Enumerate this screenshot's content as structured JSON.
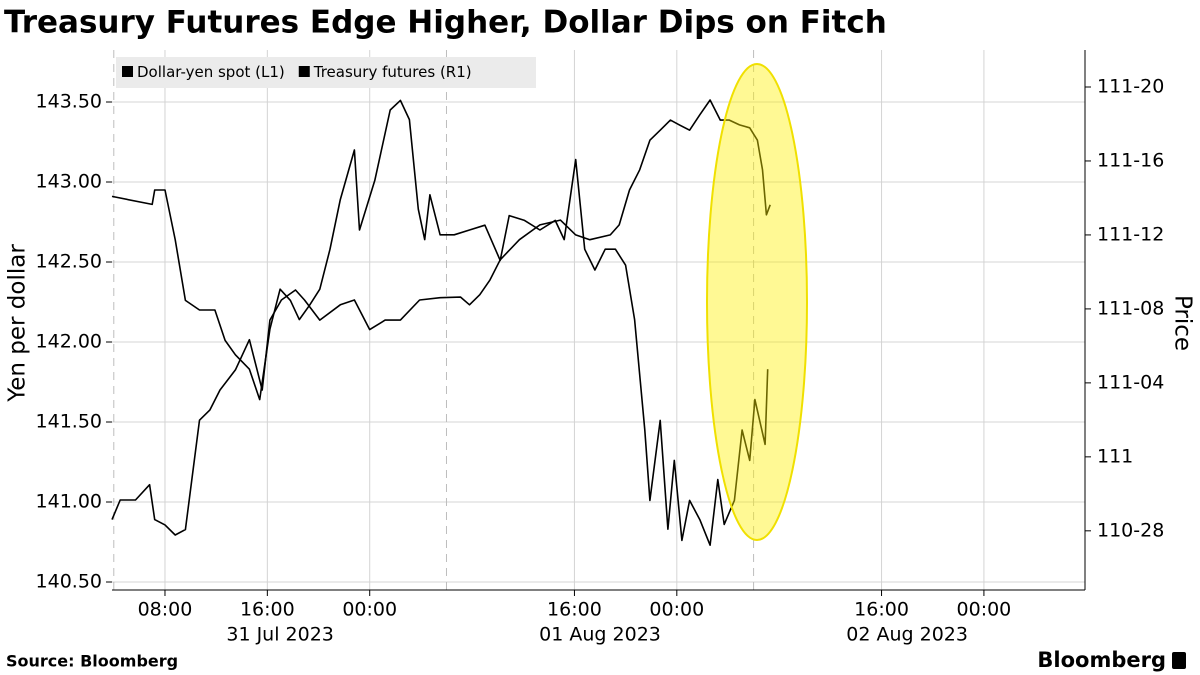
{
  "chart_data": {
    "type": "line",
    "title": "Treasury Futures Edge Higher, Dollar Dips on Fitch",
    "y_label": "Yen per dollar",
    "y2_label": "Price",
    "source": "Source: Bloomberg",
    "logo": "Bloomberg",
    "xlim": [
      3.86,
      79.9
    ],
    "xticks": [
      {
        "value": 8,
        "label": "08:00"
      },
      {
        "value": 16,
        "label": "16:00"
      },
      {
        "value": 24,
        "label": "00:00"
      },
      {
        "value": 40,
        "label": "16:00"
      },
      {
        "value": 48,
        "label": "00:00"
      },
      {
        "value": 64,
        "label": "16:00"
      },
      {
        "value": 72,
        "label": "00:00"
      }
    ],
    "date_ticks": [
      {
        "value": 17,
        "label": "31 Jul 2023"
      },
      {
        "value": 42,
        "label": "01 Aug 2023"
      },
      {
        "value": 66,
        "label": "02 Aug 2023"
      }
    ],
    "dashed_vlines": [
      4,
      30,
      54
    ],
    "ylim": [
      140.45,
      143.825
    ],
    "yticks": [
      {
        "value": 140.5,
        "label": "140.50"
      },
      {
        "value": 141,
        "label": "141.00"
      },
      {
        "value": 141.5,
        "label": "141.50"
      },
      {
        "value": 142,
        "label": "142.00"
      },
      {
        "value": 142.5,
        "label": "142.50"
      },
      {
        "value": 143,
        "label": "143.00"
      },
      {
        "value": 143.5,
        "label": "143.50"
      }
    ],
    "y2lim": [
      110.775,
      111.6875
    ],
    "y2ticks": [
      {
        "value": 110.875,
        "label": "110-28"
      },
      {
        "value": 111,
        "label": "111"
      },
      {
        "value": 111.125,
        "label": "111-04"
      },
      {
        "value": 111.25,
        "label": "111-08"
      },
      {
        "value": 111.375,
        "label": "111-12"
      },
      {
        "value": 111.5,
        "label": "111-16"
      },
      {
        "value": 111.625,
        "label": "111-20"
      }
    ],
    "grid": true,
    "series": [
      {
        "name": "Dollar-yen spot (L1)",
        "color": "#000000",
        "axis": "y",
        "x": [
          3.86,
          7,
          7.2,
          8,
          8.8,
          9.6,
          10.7,
          11.9,
          12.7,
          13.5,
          14.6,
          15.4,
          16.2,
          17,
          17.8,
          18.5,
          19.3,
          20.1,
          20.9,
          21.7,
          22.8,
          23.2,
          24.4,
          25.6,
          26.4,
          27.1,
          27.8,
          28.3,
          28.7,
          29.5,
          30.6,
          31.8,
          33,
          34.2,
          34.9,
          36.1,
          37.3,
          38.5,
          39.2,
          40.1,
          40.8,
          41.6,
          42.4,
          43.2,
          44,
          44.7,
          45.5,
          45.9,
          46.7,
          47.3,
          47.8,
          48.4,
          49,
          49.8,
          50.6,
          51.2,
          51.7,
          52.5,
          53.1,
          53.7,
          54.1,
          54.9,
          55.1
        ],
        "values": [
          142.91,
          142.86,
          142.95,
          142.95,
          142.64,
          142.26,
          142.2,
          142.2,
          142.01,
          141.92,
          141.83,
          141.64,
          142.08,
          142.33,
          142.26,
          142.14,
          142.23,
          142.33,
          142.58,
          142.89,
          143.2,
          142.7,
          143.01,
          143.45,
          143.51,
          143.39,
          142.83,
          142.64,
          142.92,
          142.67,
          142.67,
          142.7,
          142.73,
          142.51,
          142.79,
          142.76,
          142.7,
          142.76,
          142.64,
          143.14,
          142.58,
          142.45,
          142.58,
          142.58,
          142.48,
          142.14,
          141.45,
          141.01,
          141.51,
          140.83,
          141.26,
          140.76,
          141.01,
          140.89,
          140.73,
          141.14,
          140.86,
          141.01,
          141.45,
          141.26,
          141.64,
          141.36,
          141.83
        ]
      },
      {
        "name": "Treasury futures (R1)",
        "color": "#000000",
        "axis": "y2",
        "x": [
          3.86,
          4.5,
          5.7,
          6.8,
          7.2,
          8,
          8.8,
          9.6,
          10.1,
          10.7,
          11.5,
          12.3,
          13.5,
          14.6,
          15.6,
          16.2,
          17.1,
          18.2,
          18.9,
          20.1,
          21.7,
          22.8,
          24,
          25.2,
          26.4,
          27.9,
          29.5,
          31.1,
          31.8,
          32.6,
          33.4,
          34.2,
          35.7,
          37.3,
          38.9,
          40.1,
          41.2,
          42.8,
          43.5,
          44.3,
          45.1,
          45.9,
          46.7,
          47.5,
          48.2,
          49,
          49.8,
          50.6,
          51.4,
          52.1,
          52.9,
          53.7,
          54.3,
          54.7,
          55,
          55.3
        ],
        "values": [
          110.894,
          110.927,
          110.927,
          110.953,
          110.894,
          110.885,
          110.868,
          110.877,
          110.961,
          111.062,
          111.079,
          111.113,
          111.147,
          111.198,
          111.113,
          111.231,
          111.265,
          111.282,
          111.265,
          111.231,
          111.257,
          111.265,
          111.215,
          111.231,
          111.231,
          111.265,
          111.269,
          111.27,
          111.257,
          111.274,
          111.299,
          111.333,
          111.367,
          111.392,
          111.4,
          111.375,
          111.367,
          111.375,
          111.392,
          111.451,
          111.485,
          111.535,
          111.552,
          111.569,
          111.561,
          111.552,
          111.578,
          111.603,
          111.569,
          111.569,
          111.561,
          111.556,
          111.535,
          111.485,
          111.409,
          111.426
        ]
      }
    ]
  }
}
